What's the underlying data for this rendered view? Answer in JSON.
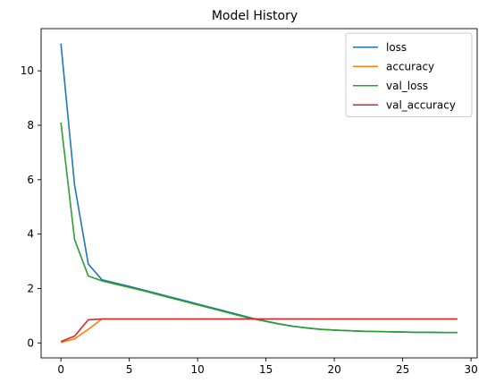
{
  "chart_data": {
    "type": "line",
    "title": "Model History",
    "xlabel": "",
    "ylabel": "",
    "xlim": [
      -1.45,
      30.45
    ],
    "ylim": [
      -0.55,
      11.55
    ],
    "xticks": [
      0,
      5,
      10,
      15,
      20,
      25,
      30
    ],
    "yticks": [
      0,
      2,
      4,
      6,
      8,
      10
    ],
    "grid": false,
    "legend_position": "upper-right",
    "series": [
      {
        "name": "loss",
        "color": "#1f77b4",
        "x": [
          0,
          1,
          2,
          3,
          4,
          5,
          6,
          7,
          8,
          9,
          10,
          11,
          12,
          13,
          14,
          15,
          16,
          17,
          18,
          19,
          20,
          21,
          22,
          23,
          24,
          25,
          26,
          27,
          28,
          29
        ],
        "values": [
          11.0,
          5.8,
          2.9,
          2.32,
          2.2,
          2.08,
          1.95,
          1.82,
          1.69,
          1.56,
          1.43,
          1.3,
          1.17,
          1.04,
          0.91,
          0.8,
          0.7,
          0.61,
          0.55,
          0.5,
          0.47,
          0.45,
          0.43,
          0.42,
          0.41,
          0.4,
          0.39,
          0.39,
          0.38,
          0.38
        ]
      },
      {
        "name": "accuracy",
        "color": "#ff7f0e",
        "x": [
          0,
          1,
          2,
          3,
          4,
          5,
          6,
          7,
          8,
          9,
          10,
          11,
          12,
          13,
          14,
          15,
          16,
          17,
          18,
          19,
          20,
          21,
          22,
          23,
          24,
          25,
          26,
          27,
          28,
          29
        ],
        "values": [
          0.02,
          0.15,
          0.5,
          0.88,
          0.88,
          0.88,
          0.88,
          0.88,
          0.88,
          0.88,
          0.88,
          0.88,
          0.88,
          0.88,
          0.88,
          0.88,
          0.88,
          0.88,
          0.88,
          0.88,
          0.88,
          0.88,
          0.88,
          0.88,
          0.88,
          0.88,
          0.88,
          0.88,
          0.88,
          0.88
        ]
      },
      {
        "name": "val_loss",
        "color": "#2ca02c",
        "x": [
          0,
          1,
          2,
          3,
          4,
          5,
          6,
          7,
          8,
          9,
          10,
          11,
          12,
          13,
          14,
          15,
          16,
          17,
          18,
          19,
          20,
          21,
          22,
          23,
          24,
          25,
          26,
          27,
          28,
          29
        ],
        "values": [
          8.1,
          3.8,
          2.46,
          2.28,
          2.16,
          2.04,
          1.92,
          1.79,
          1.66,
          1.53,
          1.4,
          1.27,
          1.14,
          1.01,
          0.89,
          0.79,
          0.69,
          0.61,
          0.55,
          0.5,
          0.47,
          0.45,
          0.43,
          0.42,
          0.41,
          0.4,
          0.39,
          0.39,
          0.38,
          0.38
        ]
      },
      {
        "name": "val_accuracy",
        "color": "#d62728",
        "x": [
          0,
          1,
          2,
          3,
          4,
          5,
          6,
          7,
          8,
          9,
          10,
          11,
          12,
          13,
          14,
          15,
          16,
          17,
          18,
          19,
          20,
          21,
          22,
          23,
          24,
          25,
          26,
          27,
          28,
          29
        ],
        "values": [
          0.05,
          0.25,
          0.85,
          0.88,
          0.88,
          0.88,
          0.88,
          0.88,
          0.88,
          0.88,
          0.88,
          0.88,
          0.88,
          0.88,
          0.88,
          0.88,
          0.88,
          0.88,
          0.88,
          0.88,
          0.88,
          0.88,
          0.88,
          0.88,
          0.88,
          0.88,
          0.88,
          0.88,
          0.88,
          0.88
        ]
      }
    ]
  }
}
